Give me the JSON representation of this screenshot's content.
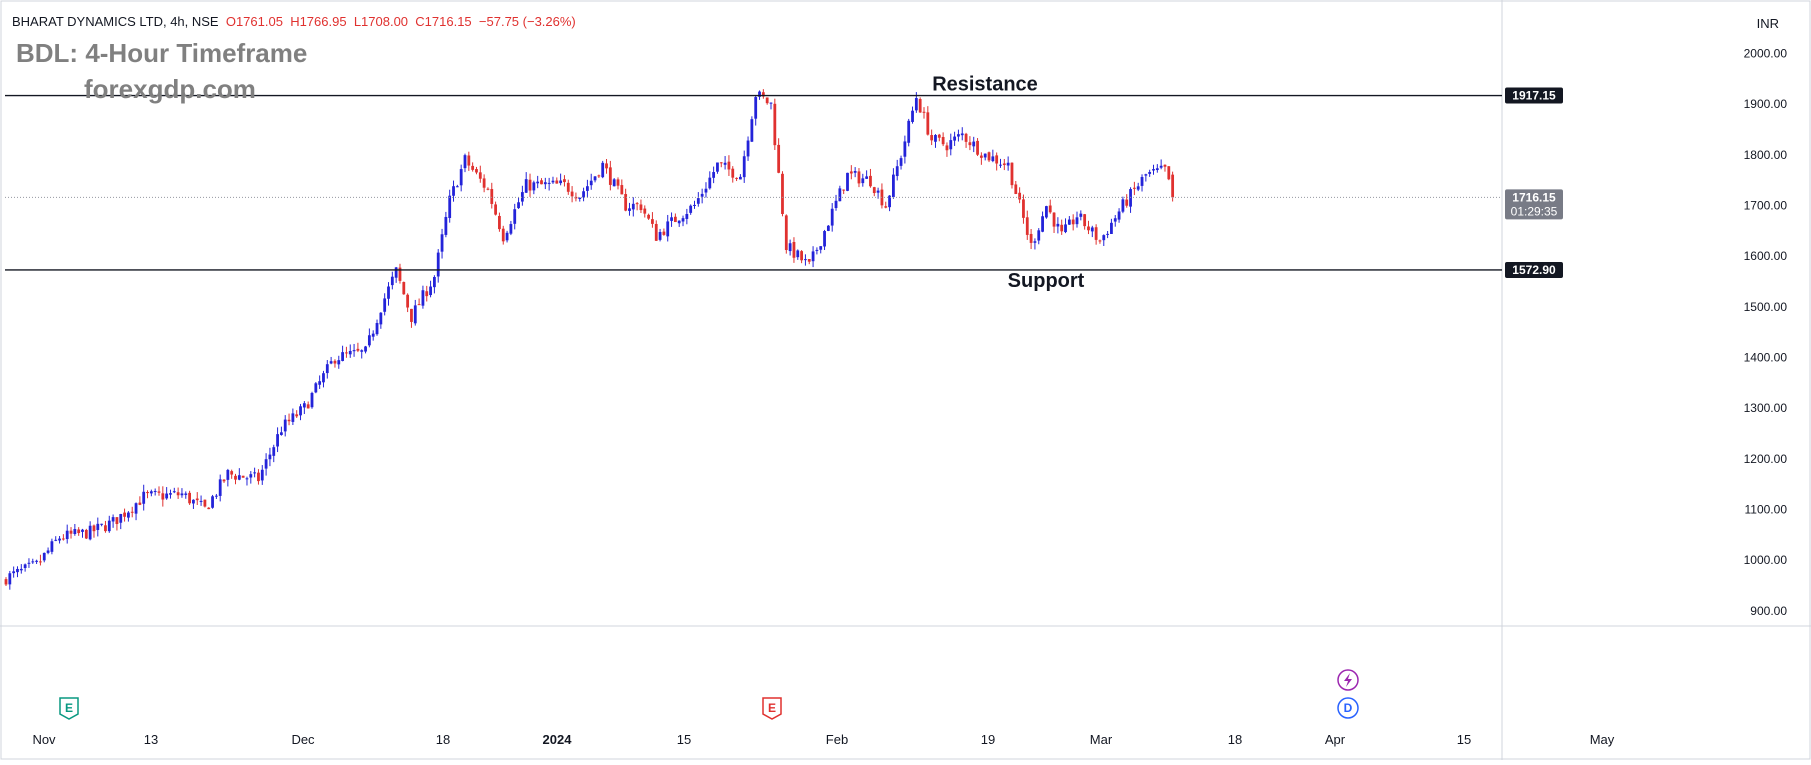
{
  "header": {
    "symbol": "BHARAT DYNAMICS LTD, 4h, NSE",
    "open": "O1761.05",
    "high": "H1766.95",
    "low": "L1708.00",
    "close": "C1716.15",
    "change": "−57.75 (−3.26%)"
  },
  "watermark": {
    "title": "BDL: 4-Hour Timeframe",
    "site": "forexgdp.com"
  },
  "currency": "INR",
  "annotations": {
    "resistance": "Resistance",
    "support": "Support"
  },
  "price_labels": {
    "resistance": "1917.15",
    "current": "1716.15",
    "countdown": "01:29:35",
    "support": "1572.90"
  },
  "event_badges": {
    "earnings": "E",
    "dividend": "D"
  },
  "colors": {
    "up": "#2323d9",
    "down": "#e0312f",
    "level_line": "#131722",
    "label_bg": "#131722",
    "current_bg": "#787b86"
  },
  "chart_data": {
    "type": "candlestick",
    "title": "BDL: 4-Hour Timeframe",
    "ylim": [
      870,
      2090
    ],
    "y_ticks": [
      900,
      1000,
      1100,
      1200,
      1300,
      1400,
      1500,
      1600,
      1700,
      1800,
      1900,
      2000
    ],
    "y_tick_labels": [
      "900.00",
      "1000.00",
      "1100.00",
      "1200.00",
      "1300.00",
      "1400.00",
      "1500.00",
      "1600.00",
      "1700.00",
      "1800.00",
      "1900.00",
      "2000.00"
    ],
    "x_tick_labels": [
      "Nov",
      "13",
      "Dec",
      "18",
      "2024",
      "15",
      "Feb",
      "19",
      "Mar",
      "18",
      "Apr",
      "15",
      "May"
    ],
    "levels": {
      "resistance": 1917.15,
      "support": 1572.9,
      "last": 1716.15
    },
    "waypoints": [
      [
        0,
        965
      ],
      [
        8,
        990
      ],
      [
        14,
        1045
      ],
      [
        22,
        1055
      ],
      [
        28,
        1075
      ],
      [
        36,
        1125
      ],
      [
        46,
        1130
      ],
      [
        52,
        1100
      ],
      [
        58,
        1170
      ],
      [
        66,
        1160
      ],
      [
        72,
        1260
      ],
      [
        78,
        1300
      ],
      [
        86,
        1400
      ],
      [
        94,
        1410
      ],
      [
        98,
        1500
      ],
      [
        102,
        1570
      ],
      [
        106,
        1480
      ],
      [
        112,
        1560
      ],
      [
        116,
        1710
      ],
      [
        120,
        1790
      ],
      [
        126,
        1730
      ],
      [
        130,
        1640
      ],
      [
        136,
        1740
      ],
      [
        146,
        1740
      ],
      [
        150,
        1720
      ],
      [
        156,
        1780
      ],
      [
        162,
        1700
      ],
      [
        166,
        1700
      ],
      [
        170,
        1640
      ],
      [
        176,
        1680
      ],
      [
        180,
        1700
      ],
      [
        186,
        1780
      ],
      [
        192,
        1760
      ],
      [
        196,
        1920
      ],
      [
        200,
        1900
      ],
      [
        204,
        1620
      ],
      [
        210,
        1580
      ],
      [
        214,
        1650
      ],
      [
        220,
        1760
      ],
      [
        226,
        1750
      ],
      [
        230,
        1700
      ],
      [
        234,
        1800
      ],
      [
        238,
        1915
      ],
      [
        242,
        1830
      ],
      [
        246,
        1820
      ],
      [
        250,
        1840
      ],
      [
        256,
        1800
      ],
      [
        262,
        1780
      ],
      [
        268,
        1620
      ],
      [
        272,
        1700
      ],
      [
        276,
        1640
      ],
      [
        280,
        1680
      ],
      [
        286,
        1630
      ],
      [
        292,
        1700
      ],
      [
        298,
        1760
      ],
      [
        303,
        1770
      ],
      [
        305,
        1716.15
      ]
    ],
    "events": [
      {
        "label": "E",
        "type": "earnings"
      },
      {
        "label": "E",
        "type": "earnings"
      },
      {
        "label": "D",
        "type": "dividend"
      }
    ]
  }
}
